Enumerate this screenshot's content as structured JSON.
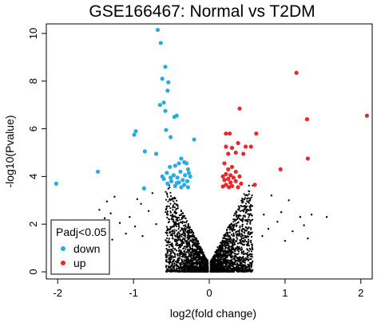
{
  "chart_data": {
    "type": "scatter",
    "title": "GSE166467: Normal vs T2DM",
    "xlabel": "log2(fold change)",
    "ylabel": "-log10(Pvalue)",
    "xlim": [
      -2.15,
      2.15
    ],
    "ylim": [
      -0.3,
      10.4
    ],
    "x_ticks": [
      -2,
      -1,
      0,
      1,
      2
    ],
    "y_ticks": [
      0,
      2,
      4,
      6,
      8,
      10
    ],
    "grid": false,
    "legend": {
      "title": "Padj<0.05",
      "placement": "bottom-left",
      "entries": [
        {
          "label": "down",
          "color": "#29abe2"
        },
        {
          "label": "up",
          "color": "#e8282b"
        }
      ]
    },
    "series": [
      {
        "name": "down",
        "color": "#29abe2",
        "points": [
          [
            -0.68,
            10.15
          ],
          [
            -0.64,
            9.6
          ],
          [
            -0.58,
            8.6
          ],
          [
            -0.62,
            8.1
          ],
          [
            -0.54,
            7.95
          ],
          [
            -0.55,
            7.6
          ],
          [
            -0.6,
            7.1
          ],
          [
            -0.65,
            7.0
          ],
          [
            -0.58,
            6.75
          ],
          [
            -0.43,
            6.55
          ],
          [
            -0.46,
            6.5
          ],
          [
            -0.97,
            5.9
          ],
          [
            -0.99,
            5.75
          ],
          [
            -0.57,
            5.95
          ],
          [
            -0.51,
            5.65
          ],
          [
            -0.2,
            5.55
          ],
          [
            -0.85,
            5.05
          ],
          [
            -0.7,
            4.95
          ],
          [
            -0.37,
            4.75
          ],
          [
            -0.4,
            4.55
          ],
          [
            -0.33,
            4.6
          ],
          [
            -0.3,
            4.55
          ],
          [
            -0.45,
            4.45
          ],
          [
            -0.52,
            4.4
          ],
          [
            -0.28,
            4.3
          ],
          [
            -0.38,
            4.2
          ],
          [
            -0.56,
            4.15
          ],
          [
            -0.47,
            4.05
          ],
          [
            -0.32,
            4.05
          ],
          [
            -0.25,
            4.0
          ],
          [
            -0.42,
            3.95
          ],
          [
            -0.6,
            3.9
          ],
          [
            -0.35,
            3.85
          ],
          [
            -0.5,
            3.8
          ],
          [
            -0.29,
            3.8
          ],
          [
            -0.4,
            3.75
          ],
          [
            -0.55,
            3.7
          ],
          [
            -0.33,
            3.65
          ],
          [
            -0.45,
            3.6
          ],
          [
            -0.37,
            3.55
          ],
          [
            -0.28,
            3.55
          ],
          [
            -0.51,
            3.95
          ],
          [
            -0.62,
            4.0
          ],
          [
            -0.27,
            4.15
          ],
          [
            -0.43,
            3.72
          ],
          [
            -1.47,
            4.2
          ],
          [
            -2.02,
            3.7
          ],
          [
            -0.86,
            3.5
          ]
        ]
      },
      {
        "name": "up",
        "color": "#e8282b",
        "points": [
          [
            1.15,
            8.35
          ],
          [
            2.08,
            6.55
          ],
          [
            1.29,
            6.4
          ],
          [
            0.4,
            6.85
          ],
          [
            0.22,
            5.8
          ],
          [
            0.27,
            5.8
          ],
          [
            0.62,
            5.8
          ],
          [
            0.38,
            5.4
          ],
          [
            0.48,
            5.25
          ],
          [
            0.55,
            5.25
          ],
          [
            0.3,
            5.2
          ],
          [
            0.22,
            5.25
          ],
          [
            0.35,
            5.0
          ],
          [
            0.25,
            4.95
          ],
          [
            0.45,
            4.95
          ],
          [
            1.3,
            4.75
          ],
          [
            0.2,
            4.55
          ],
          [
            0.3,
            4.4
          ],
          [
            0.94,
            4.3
          ],
          [
            0.25,
            4.3
          ],
          [
            0.35,
            4.2
          ],
          [
            0.22,
            4.1
          ],
          [
            0.28,
            4.05
          ],
          [
            0.4,
            4.0
          ],
          [
            0.18,
            4.0
          ],
          [
            0.32,
            3.95
          ],
          [
            0.25,
            3.9
          ],
          [
            0.2,
            3.85
          ],
          [
            0.35,
            3.8
          ],
          [
            0.28,
            3.75
          ],
          [
            0.42,
            3.7
          ],
          [
            0.22,
            3.65
          ],
          [
            0.3,
            3.6
          ],
          [
            0.18,
            3.58
          ],
          [
            0.6,
            3.65
          ],
          [
            0.38,
            3.55
          ],
          [
            0.26,
            3.55
          ]
        ]
      }
    ],
    "nonsignificant_color": "#000000",
    "nonsignificant_points": [
      [
        -0.75,
        3.3
      ],
      [
        -1.25,
        3.15
      ],
      [
        -0.95,
        3.05
      ],
      [
        -1.35,
        2.95
      ],
      [
        -1.45,
        2.6
      ],
      [
        -1.3,
        2.45
      ],
      [
        -1.05,
        2.3
      ],
      [
        -0.9,
        2.85
      ],
      [
        -0.8,
        2.55
      ],
      [
        -1.18,
        2.05
      ],
      [
        -1.38,
        2.25
      ],
      [
        -0.98,
        1.9
      ],
      [
        -1.1,
        1.6
      ],
      [
        -0.88,
        1.5
      ],
      [
        -1.28,
        1.35
      ],
      [
        0.82,
        3.2
      ],
      [
        1.05,
        3.0
      ],
      [
        0.95,
        2.5
      ],
      [
        1.2,
        2.3
      ],
      [
        1.25,
        1.95
      ],
      [
        1.35,
        2.4
      ],
      [
        1.55,
        2.3
      ],
      [
        0.9,
        2.1
      ],
      [
        1.1,
        1.7
      ],
      [
        1.3,
        1.4
      ],
      [
        0.78,
        1.8
      ],
      [
        1.0,
        1.3
      ],
      [
        0.72,
        2.4
      ],
      [
        -0.7,
        2.0
      ],
      [
        0.7,
        1.5
      ]
    ]
  }
}
